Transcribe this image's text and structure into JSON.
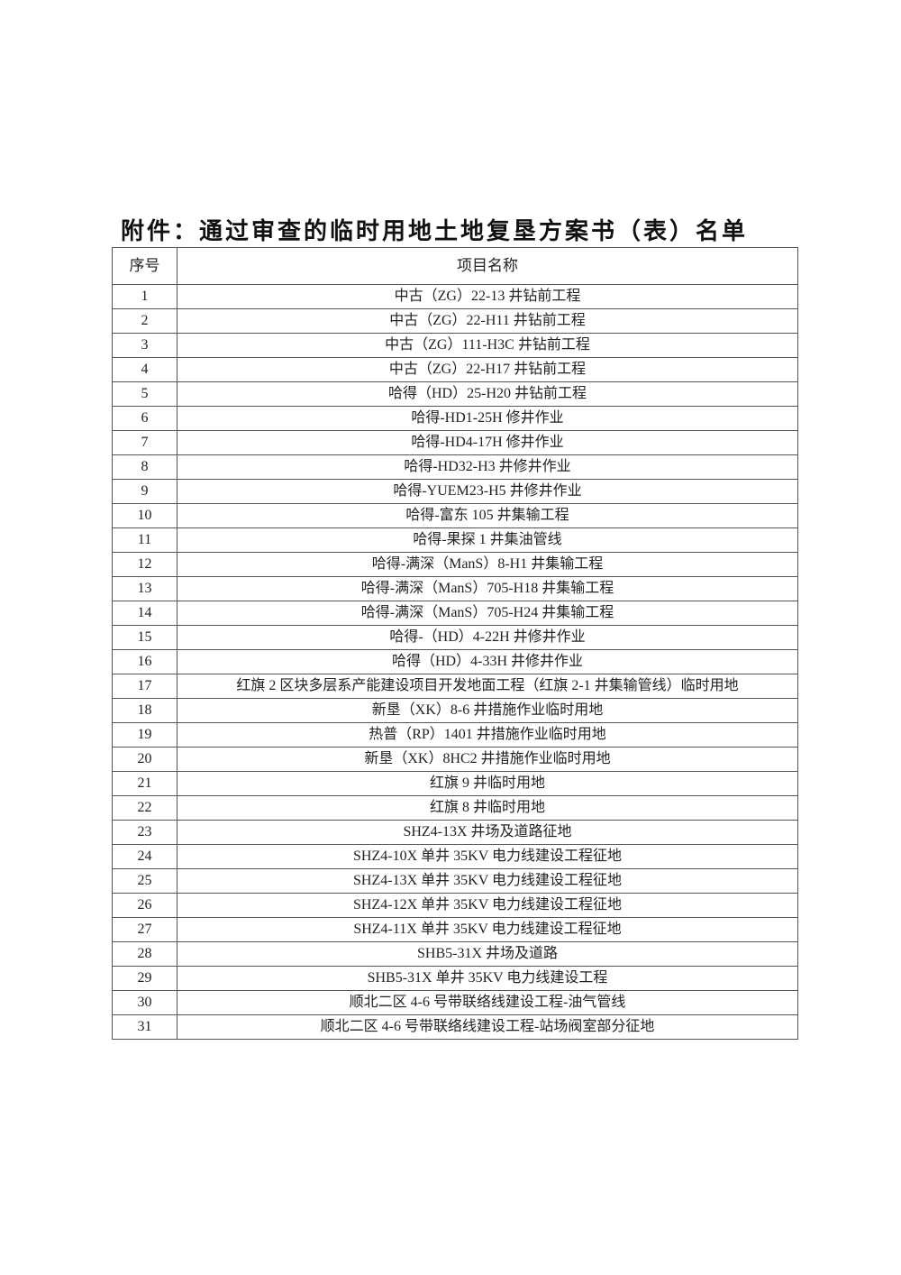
{
  "title": "附件：通过审查的临时用地土地复垦方案书（表）名单",
  "table": {
    "headers": [
      "序号",
      "项目名称"
    ],
    "rows": [
      [
        "1",
        "中古（ZG）22-13 井钻前工程"
      ],
      [
        "2",
        "中古（ZG）22-H11 井钻前工程"
      ],
      [
        "3",
        "中古（ZG）111-H3C 井钻前工程"
      ],
      [
        "4",
        "中古（ZG）22-H17 井钻前工程"
      ],
      [
        "5",
        "哈得（HD）25-H20 井钻前工程"
      ],
      [
        "6",
        "哈得-HD1-25H 修井作业"
      ],
      [
        "7",
        "哈得-HD4-17H 修井作业"
      ],
      [
        "8",
        "哈得-HD32-H3 井修井作业"
      ],
      [
        "9",
        "哈得-YUEM23-H5 井修井作业"
      ],
      [
        "10",
        "哈得-富东 105 井集输工程"
      ],
      [
        "11",
        "哈得-果探 1 井集油管线"
      ],
      [
        "12",
        "哈得-满深（ManS）8-H1 井集输工程"
      ],
      [
        "13",
        "哈得-满深（ManS）705-H18 井集输工程"
      ],
      [
        "14",
        "哈得-满深（ManS）705-H24 井集输工程"
      ],
      [
        "15",
        "哈得-（HD）4-22H 井修井作业"
      ],
      [
        "16",
        "哈得（HD）4-33H 井修井作业"
      ],
      [
        "17",
        "红旗 2 区块多层系产能建设项目开发地面工程（红旗 2-1 井集输管线）临时用地"
      ],
      [
        "18",
        "新垦（XK）8-6 井措施作业临时用地"
      ],
      [
        "19",
        "热普（RP）1401 井措施作业临时用地"
      ],
      [
        "20",
        "新垦（XK）8HC2 井措施作业临时用地"
      ],
      [
        "21",
        "红旗 9 井临时用地"
      ],
      [
        "22",
        "红旗 8 井临时用地"
      ],
      [
        "23",
        "SHZ4-13X 井场及道路征地"
      ],
      [
        "24",
        "SHZ4-10X 单井 35KV 电力线建设工程征地"
      ],
      [
        "25",
        "SHZ4-13X 单井 35KV 电力线建设工程征地"
      ],
      [
        "26",
        "SHZ4-12X 单井 35KV 电力线建设工程征地"
      ],
      [
        "27",
        "SHZ4-11X 单井 35KV 电力线建设工程征地"
      ],
      [
        "28",
        "SHB5-31X 井场及道路"
      ],
      [
        "29",
        "SHB5-31X 单井 35KV 电力线建设工程"
      ],
      [
        "30",
        "顺北二区 4-6 号带联络线建设工程-油气管线"
      ],
      [
        "31",
        "顺北二区 4-6 号带联络线建设工程-站场阀室部分征地"
      ]
    ]
  }
}
